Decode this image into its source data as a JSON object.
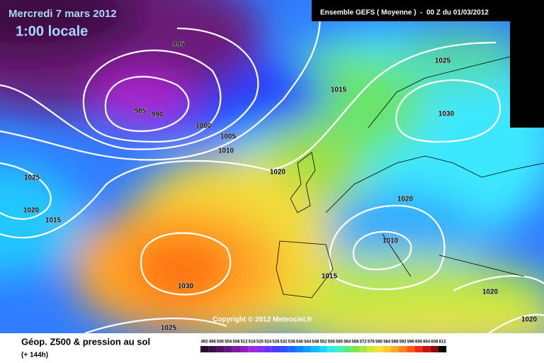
{
  "header": {
    "date": "Mercredi 7 mars 2012",
    "time": "1:00 locale",
    "model": "Ensemble GEFS ( Moyenne )  -  00 Z du 01/03/2012"
  },
  "isobar_labels": [
    995,
    985,
    990,
    1000,
    1005,
    1010,
    1015,
    1025,
    1030,
    1020,
    1025,
    1020,
    1015,
    1020,
    1010,
    1015,
    1030,
    1020,
    1025,
    1020
  ],
  "copyright": "Copyright © 2012 Meteociel.fr",
  "footer": {
    "title": "Géop. Z500 & pression au sol",
    "lead": "(+ 144h)"
  },
  "scale": [
    492,
    496,
    500,
    504,
    508,
    512,
    516,
    520,
    524,
    528,
    532,
    536,
    540,
    544,
    548,
    552,
    556,
    560,
    564,
    568,
    572,
    576,
    580,
    584,
    588,
    592,
    596,
    600,
    604,
    608,
    612
  ]
}
